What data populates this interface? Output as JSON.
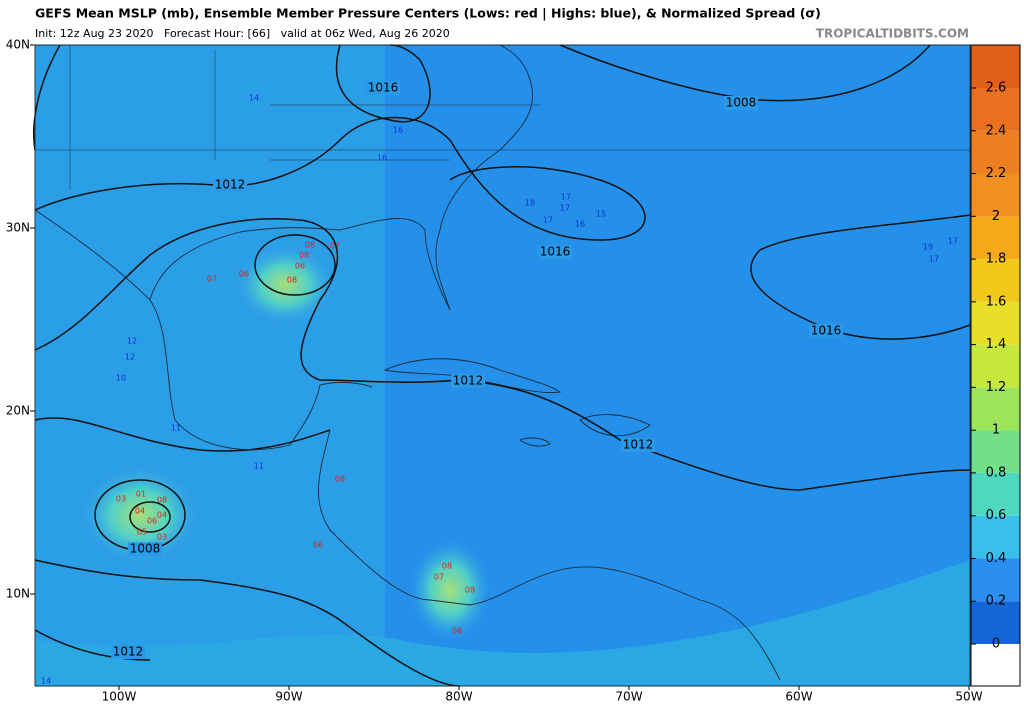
{
  "header": {
    "title": "GEFS Mean MSLP (mb), Ensemble Member Pressure Centers (Lows: red | Highs: blue), & Normalized Spread (σ)",
    "subtitle": "Init: 12z Aug 23 2020   Forecast Hour: [66]   valid at 06z Wed, Aug 26 2020",
    "source": "TROPICALTIDBITS.COM"
  },
  "map": {
    "lat_labels": [
      "40N",
      "30N",
      "20N",
      "10N"
    ],
    "lon_labels": [
      "100W",
      "90W",
      "80W",
      "70W",
      "60W",
      "50W"
    ],
    "isobar_labels": [
      "1016",
      "1008",
      "1012",
      "1016",
      "1016",
      "1012",
      "1012",
      "1008",
      "1012"
    ],
    "lows": [
      "03",
      "01",
      "04",
      "08",
      "06",
      "05",
      "03",
      "04",
      "07",
      "06",
      "08",
      "08",
      "07",
      "08",
      "06",
      "08",
      "07",
      "08",
      "06",
      "06",
      "08"
    ],
    "highs": [
      "14",
      "16",
      "16",
      "17",
      "18",
      "17",
      "17",
      "15",
      "16",
      "19",
      "17",
      "17",
      "12",
      "12",
      "10",
      "11",
      "11",
      "14"
    ]
  },
  "colorbar": {
    "ticks": [
      0,
      0.2,
      0.4,
      0.6,
      0.8,
      1,
      1.2,
      1.4,
      1.6,
      1.8,
      2,
      2.2,
      2.4,
      2.6
    ]
  }
}
